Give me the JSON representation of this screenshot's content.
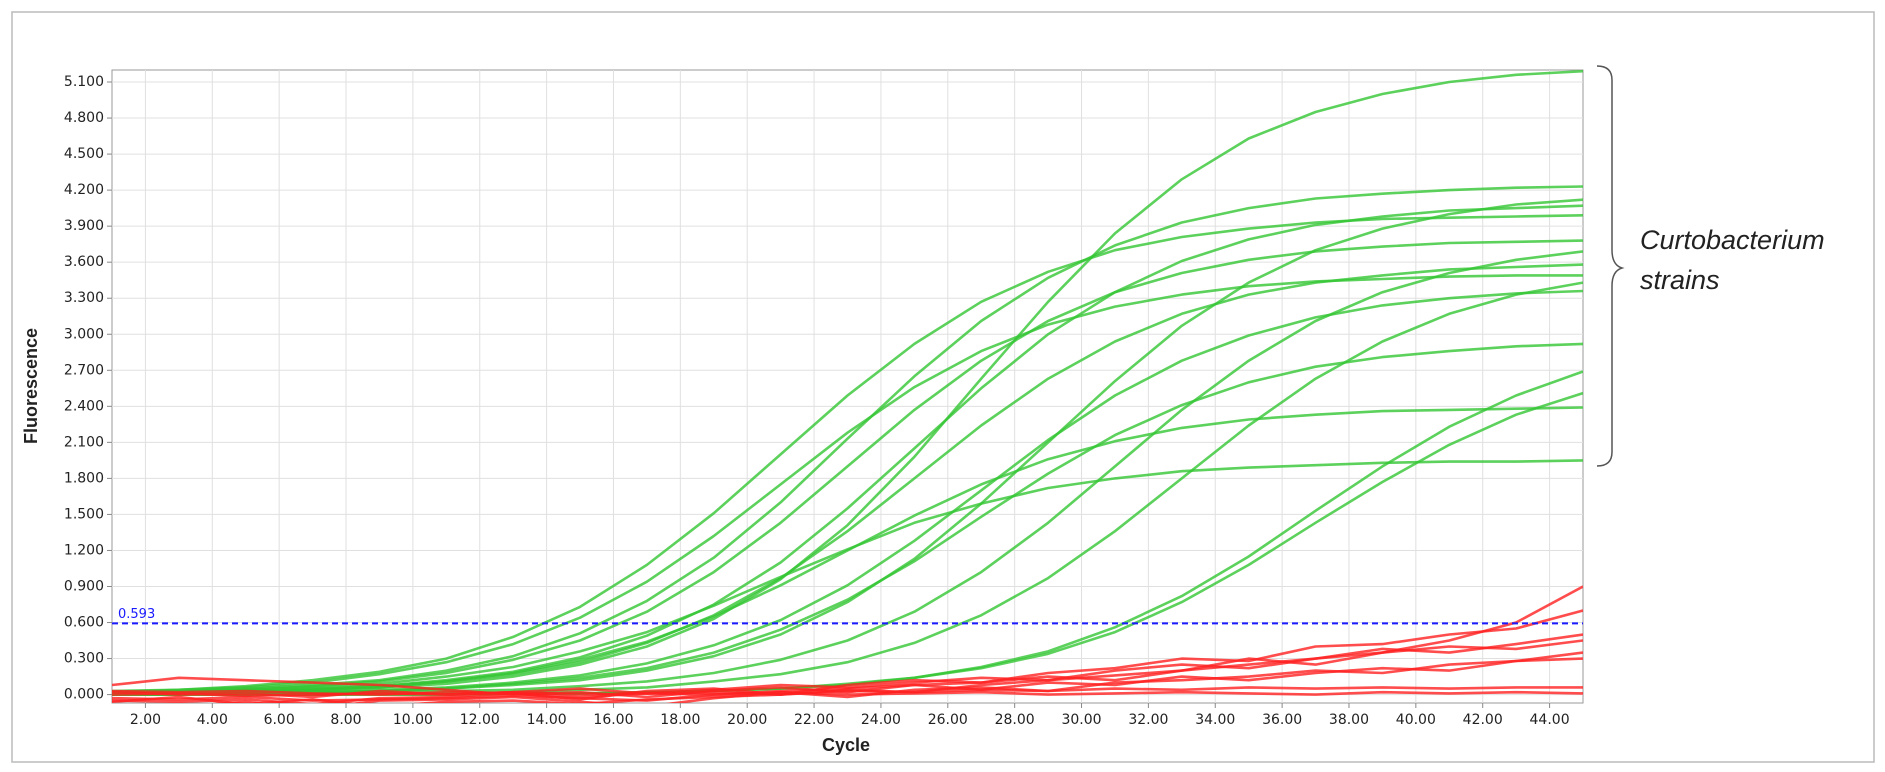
{
  "chart_data": {
    "type": "line",
    "x_label": "Cycle",
    "y_label": "Fluorescence",
    "x": [
      1,
      3,
      5,
      7,
      9,
      11,
      13,
      15,
      17,
      19,
      21,
      23,
      25,
      27,
      29,
      31,
      33,
      35,
      37,
      39,
      41,
      43,
      45
    ],
    "xlim": [
      1,
      45
    ],
    "ylim": [
      -0.07,
      5.2
    ],
    "xticks": [
      {
        "value": 2,
        "label": "2.00"
      },
      {
        "value": 4,
        "label": "4.00"
      },
      {
        "value": 6,
        "label": "6.00"
      },
      {
        "value": 8,
        "label": "8.00"
      },
      {
        "value": 10,
        "label": "10.00"
      },
      {
        "value": 12,
        "label": "12.00"
      },
      {
        "value": 14,
        "label": "14.00"
      },
      {
        "value": 16,
        "label": "16.00"
      },
      {
        "value": 18,
        "label": "18.00"
      },
      {
        "value": 20,
        "label": "20.00"
      },
      {
        "value": 22,
        "label": "22.00"
      },
      {
        "value": 24,
        "label": "24.00"
      },
      {
        "value": 26,
        "label": "26.00"
      },
      {
        "value": 28,
        "label": "28.00"
      },
      {
        "value": 30,
        "label": "30.00"
      },
      {
        "value": 32,
        "label": "32.00"
      },
      {
        "value": 34,
        "label": "34.00"
      },
      {
        "value": 36,
        "label": "36.00"
      },
      {
        "value": 38,
        "label": "38.00"
      },
      {
        "value": 40,
        "label": "40.00"
      },
      {
        "value": 42,
        "label": "42.00"
      },
      {
        "value": 44,
        "label": "44.00"
      }
    ],
    "yticks": [
      {
        "value": 0,
        "label": "0.000"
      },
      {
        "value": 0.3,
        "label": "0.300"
      },
      {
        "value": 0.6,
        "label": "0.600"
      },
      {
        "value": 0.9,
        "label": "0.900"
      },
      {
        "value": 1.2,
        "label": "1.200"
      },
      {
        "value": 1.5,
        "label": "1.500"
      },
      {
        "value": 1.8,
        "label": "1.800"
      },
      {
        "value": 2.1,
        "label": "2.100"
      },
      {
        "value": 2.4,
        "label": "2.400"
      },
      {
        "value": 2.7,
        "label": "2.700"
      },
      {
        "value": 3.0,
        "label": "3.000"
      },
      {
        "value": 3.3,
        "label": "3.300"
      },
      {
        "value": 3.6,
        "label": "3.600"
      },
      {
        "value": 3.9,
        "label": "3.900"
      },
      {
        "value": 4.2,
        "label": "4.200"
      },
      {
        "value": 4.5,
        "label": "4.500"
      },
      {
        "value": 4.8,
        "label": "4.800"
      },
      {
        "value": 5.1,
        "label": "5.100"
      }
    ],
    "grid": true,
    "threshold": {
      "value": 0.593,
      "label": "0.593",
      "color": "#1a1aff"
    },
    "annotation": [
      "Curtobacterium",
      "strains"
    ],
    "series": [
      {
        "color": "#33c633",
        "values": [
          0.01,
          0.01,
          0.02,
          0.04,
          0.06,
          0.09,
          0.15,
          0.25,
          0.4,
          0.63,
          0.96,
          1.41,
          1.98,
          2.63,
          3.27,
          3.84,
          4.29,
          4.63,
          4.85,
          5.0,
          5.1,
          5.16,
          5.19
        ]
      },
      {
        "color": "#33c633",
        "values": [
          0.02,
          0.03,
          0.05,
          0.08,
          0.12,
          0.2,
          0.32,
          0.51,
          0.78,
          1.14,
          1.6,
          2.13,
          2.65,
          3.11,
          3.47,
          3.74,
          3.93,
          4.05,
          4.13,
          4.17,
          4.2,
          4.22,
          4.23
        ]
      },
      {
        "color": "#33c633",
        "values": [
          0.03,
          0.04,
          0.07,
          0.12,
          0.19,
          0.3,
          0.48,
          0.73,
          1.08,
          1.51,
          2.0,
          2.49,
          2.92,
          3.27,
          3.52,
          3.7,
          3.81,
          3.88,
          3.93,
          3.96,
          3.97,
          3.98,
          3.99
        ]
      },
      {
        "color": "#33c633",
        "values": [
          0.02,
          0.03,
          0.04,
          0.07,
          0.11,
          0.18,
          0.29,
          0.45,
          0.69,
          1.02,
          1.43,
          1.9,
          2.37,
          2.78,
          3.11,
          3.35,
          3.51,
          3.62,
          3.69,
          3.73,
          3.76,
          3.77,
          3.78
        ]
      },
      {
        "color": "#33c633",
        "values": [
          0.01,
          0.01,
          0.02,
          0.04,
          0.06,
          0.11,
          0.17,
          0.27,
          0.43,
          0.66,
          0.97,
          1.36,
          1.8,
          2.24,
          2.63,
          2.94,
          3.17,
          3.33,
          3.43,
          3.49,
          3.54,
          3.56,
          3.58
        ]
      },
      {
        "color": "#33c633",
        "values": [
          0.01,
          0.02,
          0.03,
          0.05,
          0.07,
          0.12,
          0.19,
          0.31,
          0.49,
          0.75,
          1.1,
          1.55,
          2.05,
          2.55,
          3.0,
          3.35,
          3.61,
          3.79,
          3.91,
          3.98,
          4.03,
          4.05,
          4.07
        ]
      },
      {
        "color": "#33c633",
        "values": [
          0.02,
          0.04,
          0.06,
          0.1,
          0.17,
          0.27,
          0.42,
          0.64,
          0.94,
          1.32,
          1.75,
          2.18,
          2.56,
          2.86,
          3.08,
          3.23,
          3.33,
          3.4,
          3.44,
          3.46,
          3.48,
          3.49,
          3.49
        ]
      },
      {
        "color": "#33c633",
        "values": [
          0,
          0.01,
          0.01,
          0.02,
          0.03,
          0.05,
          0.08,
          0.12,
          0.2,
          0.32,
          0.5,
          0.77,
          1.13,
          1.59,
          2.1,
          2.61,
          3.07,
          3.43,
          3.7,
          3.88,
          4.0,
          4.08,
          4.12
        ]
      },
      {
        "color": "#33c633",
        "values": [
          0,
          0,
          0.01,
          0.01,
          0.02,
          0.03,
          0.04,
          0.07,
          0.11,
          0.18,
          0.29,
          0.45,
          0.69,
          1.02,
          1.43,
          1.9,
          2.37,
          2.78,
          3.11,
          3.35,
          3.51,
          3.62,
          3.69
        ]
      },
      {
        "color": "#33c633",
        "values": [
          0,
          0,
          0,
          0.01,
          0.01,
          0.01,
          0.02,
          0.04,
          0.06,
          0.11,
          0.17,
          0.27,
          0.43,
          0.66,
          0.97,
          1.36,
          1.8,
          2.24,
          2.63,
          2.94,
          3.17,
          3.33,
          3.43
        ]
      },
      {
        "color": "#33c633",
        "values": [
          0.01,
          0.02,
          0.04,
          0.06,
          0.09,
          0.15,
          0.23,
          0.36,
          0.52,
          0.74,
          0.98,
          1.21,
          1.43,
          1.59,
          1.72,
          1.8,
          1.86,
          1.89,
          1.91,
          1.93,
          1.94,
          1.94,
          1.95
        ]
      },
      {
        "color": "#33c633",
        "values": [
          0.01,
          0.02,
          0.03,
          0.04,
          0.07,
          0.11,
          0.18,
          0.29,
          0.44,
          0.65,
          0.91,
          1.2,
          1.49,
          1.75,
          1.96,
          2.11,
          2.22,
          2.29,
          2.33,
          2.36,
          2.37,
          2.38,
          2.39
        ]
      },
      {
        "color": "#33c633",
        "values": [
          0,
          0.01,
          0.01,
          0.02,
          0.03,
          0.05,
          0.09,
          0.14,
          0.22,
          0.35,
          0.54,
          0.79,
          1.11,
          1.48,
          1.84,
          2.16,
          2.41,
          2.6,
          2.73,
          2.81,
          2.86,
          2.9,
          2.92
        ]
      },
      {
        "color": "#33c633",
        "values": [
          0,
          0,
          0,
          0,
          0,
          0,
          0.01,
          0.01,
          0.02,
          0.03,
          0.05,
          0.09,
          0.14,
          0.23,
          0.36,
          0.56,
          0.82,
          1.15,
          1.53,
          1.9,
          2.23,
          2.49,
          2.69
        ]
      },
      {
        "color": "#33c633",
        "values": [
          0,
          0,
          0,
          0,
          0,
          0,
          0.01,
          0.01,
          0.02,
          0.03,
          0.05,
          0.08,
          0.14,
          0.22,
          0.34,
          0.52,
          0.77,
          1.08,
          1.43,
          1.77,
          2.08,
          2.33,
          2.51
        ]
      },
      {
        "color": "#33c633",
        "values": [
          0.01,
          0.01,
          0.01,
          0.02,
          0.04,
          0.06,
          0.1,
          0.16,
          0.26,
          0.41,
          0.62,
          0.91,
          1.28,
          1.7,
          2.12,
          2.49,
          2.78,
          2.99,
          3.14,
          3.24,
          3.3,
          3.34,
          3.36
        ]
      },
      {
        "color": "#ff2020",
        "values": [
          0.08,
          0.14,
          0.12,
          0.1,
          0.08,
          0.04,
          0,
          0.02,
          -0.02,
          0.03,
          0.06,
          0.02,
          0.08,
          0.1,
          0.15,
          0.12,
          0.2,
          0.25,
          0.3,
          0.35,
          0.45,
          0.6,
          0.9
        ]
      },
      {
        "color": "#ff2020",
        "values": [
          -0.05,
          -0.06,
          -0.04,
          -0.08,
          -0.03,
          -0.02,
          0.01,
          -0.04,
          0.03,
          0.05,
          0,
          0.08,
          0.12,
          0.1,
          0.18,
          0.22,
          0.3,
          0.28,
          0.4,
          0.42,
          0.5,
          0.55,
          0.7
        ]
      },
      {
        "color": "#ff2020",
        "values": [
          0.02,
          0,
          0.01,
          -0.02,
          0.03,
          0,
          0.02,
          0.05,
          0.01,
          0.04,
          0.08,
          0.06,
          0.1,
          0.14,
          0.12,
          0.2,
          0.25,
          0.22,
          0.3,
          0.38,
          0.35,
          0.42,
          0.5
        ]
      },
      {
        "color": "#ff2020",
        "values": [
          -0.08,
          -0.1,
          -0.06,
          -0.12,
          -0.05,
          -0.04,
          -0.02,
          -0.06,
          -0.1,
          -0.03,
          0.02,
          -0.02,
          0.04,
          0.06,
          0.03,
          0.1,
          0.12,
          0.15,
          0.2,
          0.18,
          0.25,
          0.28,
          0.3
        ]
      },
      {
        "color": "#ff2020",
        "values": [
          0,
          0.01,
          -0.01,
          0,
          0.01,
          0,
          0.02,
          0,
          0.01,
          0.02,
          0,
          0.03,
          0.02,
          0.04,
          0.03,
          0.05,
          0.04,
          0.06,
          0.05,
          0.06,
          0.05,
          0.06,
          0.06
        ]
      },
      {
        "color": "#ff2020",
        "values": [
          -0.03,
          -0.04,
          -0.02,
          -0.05,
          -0.04,
          -0.03,
          -0.01,
          -0.03,
          -0.05,
          0,
          0.03,
          0.05,
          0.08,
          0.04,
          0.1,
          0.08,
          0.15,
          0.12,
          0.18,
          0.22,
          0.2,
          0.28,
          0.35
        ]
      },
      {
        "color": "#ff2020",
        "values": [
          0.03,
          0.02,
          0.03,
          0.01,
          0,
          0.02,
          0.01,
          -0.02,
          0.01,
          0,
          0.02,
          0,
          0.01,
          0.02,
          0,
          0.01,
          0.02,
          0.01,
          0,
          0.02,
          0.01,
          0.02,
          0.01
        ]
      },
      {
        "color": "#ff2020",
        "values": [
          -0.06,
          -0.02,
          -0.08,
          -0.04,
          -0.1,
          -0.06,
          -0.05,
          -0.08,
          -0.04,
          -0.02,
          0,
          0.04,
          0.02,
          0.08,
          0.12,
          0.16,
          0.2,
          0.3,
          0.25,
          0.35,
          0.4,
          0.38,
          0.45
        ]
      }
    ]
  }
}
